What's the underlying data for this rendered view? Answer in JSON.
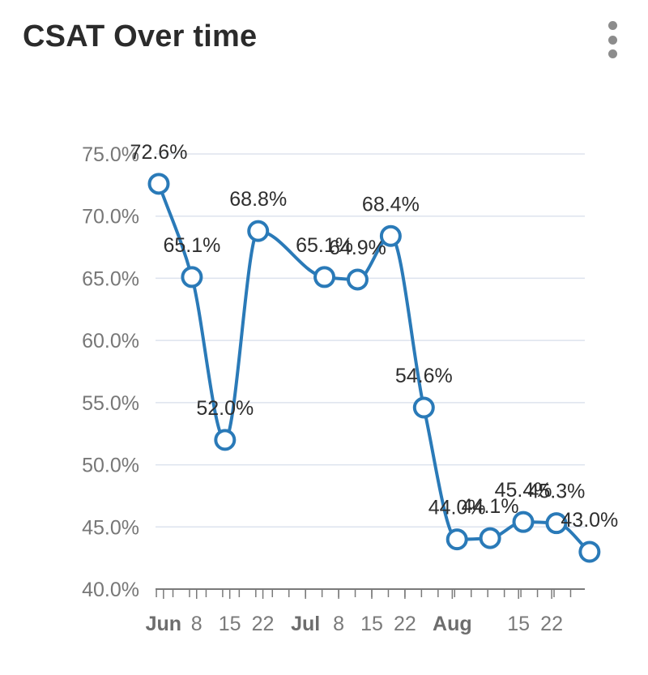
{
  "header": {
    "title": "CSAT Over time",
    "menu_icon": "more-vertical-icon"
  },
  "colors": {
    "series": "#2a7ab8",
    "grid": "#dde3ee",
    "axis": "#7a7a7a",
    "point_fill": "#ffffff"
  },
  "chart_data": {
    "type": "line",
    "title": "CSAT Over time",
    "xlabel": "",
    "ylabel": "",
    "ylim": [
      40,
      75
    ],
    "y_ticks": [
      "40.0%",
      "45.0%",
      "50.0%",
      "55.0%",
      "60.0%",
      "65.0%",
      "70.0%",
      "75.0%"
    ],
    "y_tick_values": [
      40,
      45,
      50,
      55,
      60,
      65,
      70,
      75
    ],
    "x_day_range": [
      0,
      90
    ],
    "x_ticks": [
      {
        "label": "Jun",
        "day": 1,
        "major": true
      },
      {
        "label": "8",
        "day": 8,
        "major": false
      },
      {
        "label": "15",
        "day": 15,
        "major": false
      },
      {
        "label": "22",
        "day": 22,
        "major": false
      },
      {
        "label": "Jul",
        "day": 31,
        "major": true
      },
      {
        "label": "8",
        "day": 38,
        "major": false
      },
      {
        "label": "15",
        "day": 45,
        "major": false
      },
      {
        "label": "22",
        "day": 52,
        "major": false
      },
      {
        "label": "Aug",
        "day": 62,
        "major": true
      },
      {
        "label": "15",
        "day": 76,
        "major": false
      },
      {
        "label": "22",
        "day": 83,
        "major": false
      }
    ],
    "series": [
      {
        "name": "CSAT",
        "x": [
          0,
          7,
          14,
          21,
          35,
          42,
          49,
          56,
          63,
          70,
          77,
          84,
          91
        ],
        "values": [
          72.6,
          65.1,
          52.0,
          68.8,
          65.1,
          64.9,
          68.4,
          54.6,
          44.0,
          44.1,
          45.4,
          45.3,
          43.0
        ],
        "labels": [
          "72.6%",
          "65.1%",
          "52.0%",
          "68.8%",
          "65.1%",
          "64.9%",
          "68.4%",
          "54.6%",
          "44.0%",
          "44.1%",
          "45.4%",
          "45.3%",
          "43.0%"
        ]
      }
    ]
  }
}
